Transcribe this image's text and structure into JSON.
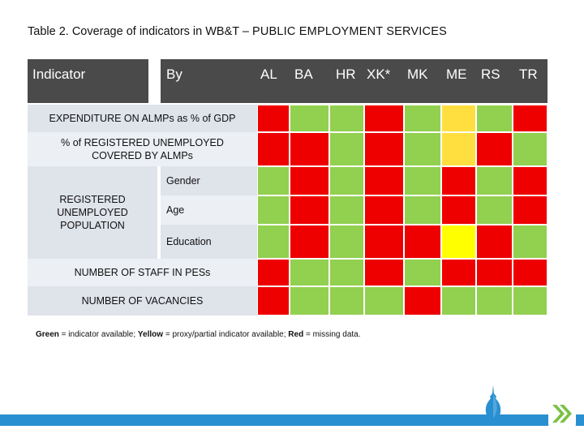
{
  "title": {
    "prefix": "Table 2. Coverage of indicators in WB&T – ",
    "caps": "PUBLIC EMPLOYMENT SERVICES"
  },
  "header": {
    "indicator": "Indicator",
    "by": "By",
    "countries": [
      "AL",
      "BA",
      "HR",
      "XK*",
      "MK",
      "ME",
      "RS",
      "TR"
    ]
  },
  "rows": [
    {
      "label": "EXPENDITURE ON ALMPs as % of GDP",
      "cells": [
        "red",
        "green",
        "green",
        "red",
        "green",
        "yellow",
        "green",
        "red"
      ]
    },
    {
      "label": "% of REGISTERED UNEMPLOYED COVERED BY ALMPs",
      "cells": [
        "red",
        "red",
        "green",
        "red",
        "green",
        "yellow",
        "red",
        "green"
      ]
    },
    {
      "group": "REGISTERED UNEMPLOYED POPULATION",
      "by": "Gender",
      "cells": [
        "green",
        "red",
        "green",
        "red",
        "green",
        "red",
        "green",
        "red"
      ]
    },
    {
      "group": "REGISTERED UNEMPLOYED POPULATION",
      "by": "Age",
      "cells": [
        "green",
        "red",
        "green",
        "red",
        "green",
        "red",
        "green",
        "red"
      ]
    },
    {
      "group": "REGISTERED UNEMPLOYED POPULATION",
      "by": "Education",
      "cells": [
        "green",
        "red",
        "green",
        "red",
        "red",
        "bright-yellow",
        "red",
        "green"
      ]
    },
    {
      "label": "NUMBER OF STAFF IN PESs",
      "cells": [
        "red",
        "green",
        "green",
        "red",
        "green",
        "red",
        "red",
        "red"
      ]
    },
    {
      "label": "NUMBER OF VACANCIES",
      "cells": [
        "red",
        "green",
        "green",
        "green",
        "red",
        "green",
        "green",
        "green"
      ]
    }
  ],
  "group_label": "REGISTERED UNEMPLOYED POPULATION",
  "by_labels": [
    "Gender",
    "Age",
    "Education"
  ],
  "full_labels": [
    "EXPENDITURE ON ALMPs as % of GDP",
    "% of REGISTERED UNEMPLOYED COVERED BY ALMPs",
    "NUMBER OF STAFF IN PESs",
    "NUMBER OF VACANCIES"
  ],
  "legend": {
    "green_word": "Green",
    "green_text": " =  indicator available; ",
    "yellow_word": "Yellow",
    "yellow_text": " = proxy/partial indicator available; ",
    "red_word": "Red",
    "red_text": " = missing data."
  },
  "colors": {
    "red": "#ee0000",
    "green": "#92d050",
    "yellow": "#ffdf3f",
    "bright-yellow": "#ffff00",
    "header": "#4a4a4a",
    "accent": "#2a8fd0",
    "chevron": "#7ac143"
  },
  "icons": [
    "drop-logo-icon",
    "double-chevron-icon"
  ]
}
